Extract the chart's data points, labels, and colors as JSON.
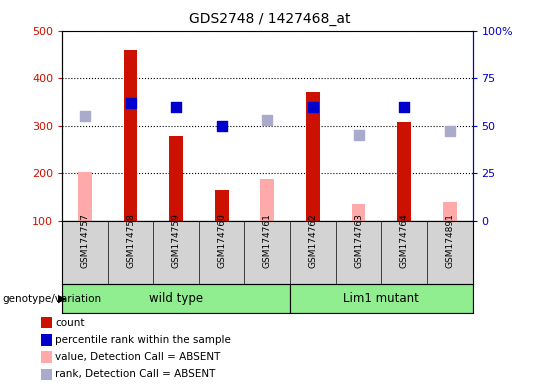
{
  "title": "GDS2748 / 1427468_at",
  "samples": [
    "GSM174757",
    "GSM174758",
    "GSM174759",
    "GSM174760",
    "GSM174761",
    "GSM174762",
    "GSM174763",
    "GSM174764",
    "GSM174891"
  ],
  "count_present": [
    null,
    460,
    278,
    165,
    null,
    372,
    null,
    308,
    null
  ],
  "count_absent": [
    203,
    null,
    null,
    null,
    187,
    null,
    135,
    null,
    140
  ],
  "rank_present_pct": [
    null,
    62,
    60,
    50,
    null,
    60,
    null,
    60,
    null
  ],
  "rank_absent_pct": [
    55,
    null,
    null,
    null,
    53,
    null,
    45,
    null,
    47
  ],
  "ylim_left": [
    100,
    500
  ],
  "ylim_right": [
    0,
    100
  ],
  "yticks_left": [
    100,
    200,
    300,
    400,
    500
  ],
  "yticks_left_labels": [
    "100",
    "200",
    "300",
    "400",
    "500"
  ],
  "yticks_right": [
    0,
    25,
    50,
    75,
    100
  ],
  "yticks_right_labels": [
    "0",
    "25",
    "50",
    "75",
    "100%"
  ],
  "color_count_present": "#cc1100",
  "color_count_absent": "#ffaaaa",
  "color_rank_present": "#0000cc",
  "color_rank_absent": "#aaaacc",
  "wild_type_indices": [
    0,
    1,
    2,
    3,
    4
  ],
  "lim1_indices": [
    5,
    6,
    7,
    8
  ],
  "group_color": "#90EE90",
  "legend_items": [
    {
      "label": "count",
      "color": "#cc1100"
    },
    {
      "label": "percentile rank within the sample",
      "color": "#0000cc"
    },
    {
      "label": "value, Detection Call = ABSENT",
      "color": "#ffaaaa"
    },
    {
      "label": "rank, Detection Call = ABSENT",
      "color": "#aaaacc"
    }
  ],
  "genotype_label": "genotype/variation",
  "bar_width": 0.5,
  "dot_size": 55,
  "gray_bg": "#d3d3d3"
}
